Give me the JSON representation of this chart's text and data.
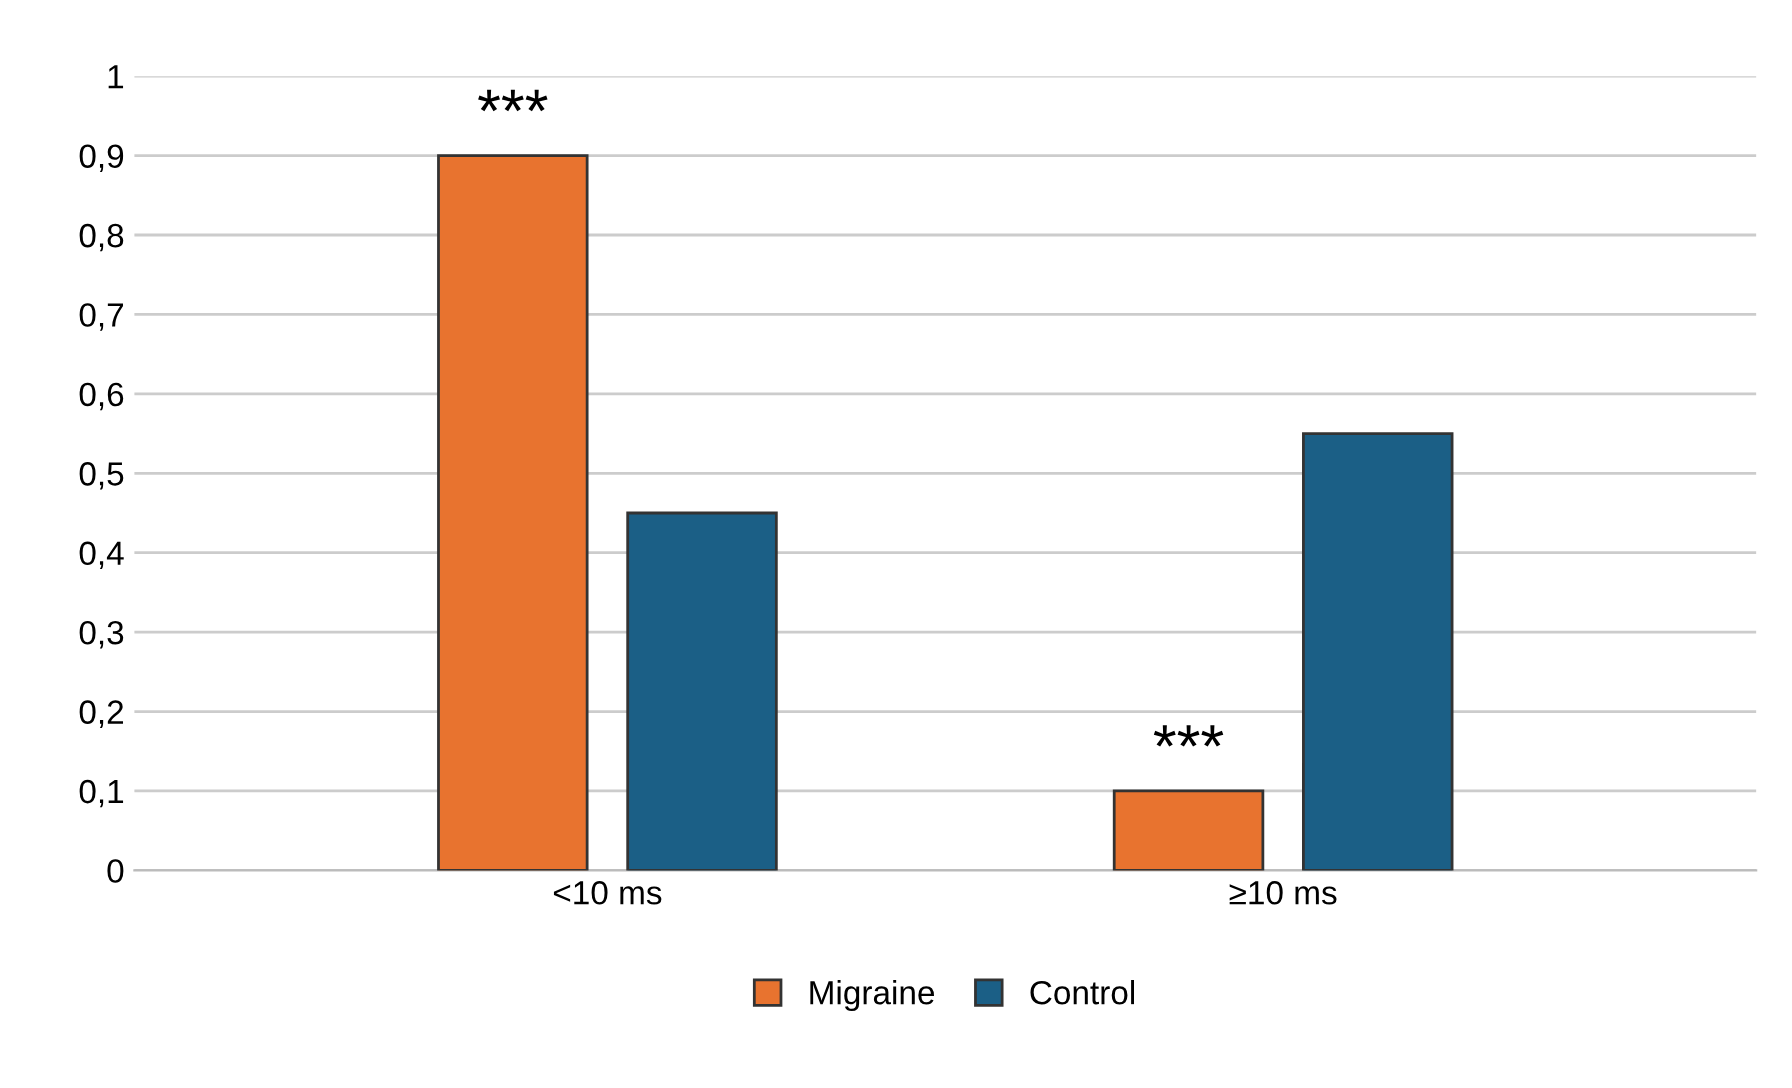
{
  "chart_data": {
    "type": "bar",
    "categories": [
      "<10 ms",
      "≥10 ms"
    ],
    "series": [
      {
        "name": "Migraine",
        "color": "#e8732f",
        "values": [
          0.9,
          0.1
        ]
      },
      {
        "name": "Control",
        "color": "#1b5f86",
        "values": [
          0.45,
          0.55
        ]
      }
    ],
    "ylim": [
      0,
      1
    ],
    "yticks": [
      {
        "value": 0,
        "label": "0"
      },
      {
        "value": 0.1,
        "label": "0,1"
      },
      {
        "value": 0.2,
        "label": "0,2"
      },
      {
        "value": 0.3,
        "label": "0,3"
      },
      {
        "value": 0.4,
        "label": "0,4"
      },
      {
        "value": 0.5,
        "label": "0,5"
      },
      {
        "value": 0.6,
        "label": "0,6"
      },
      {
        "value": 0.7,
        "label": "0,7"
      },
      {
        "value": 0.8,
        "label": "0,8"
      },
      {
        "value": 0.9,
        "label": "0,9"
      },
      {
        "value": 1,
        "label": "1"
      }
    ],
    "annotations": [
      "***",
      "***"
    ],
    "grid": "y",
    "legend": "bottom"
  }
}
